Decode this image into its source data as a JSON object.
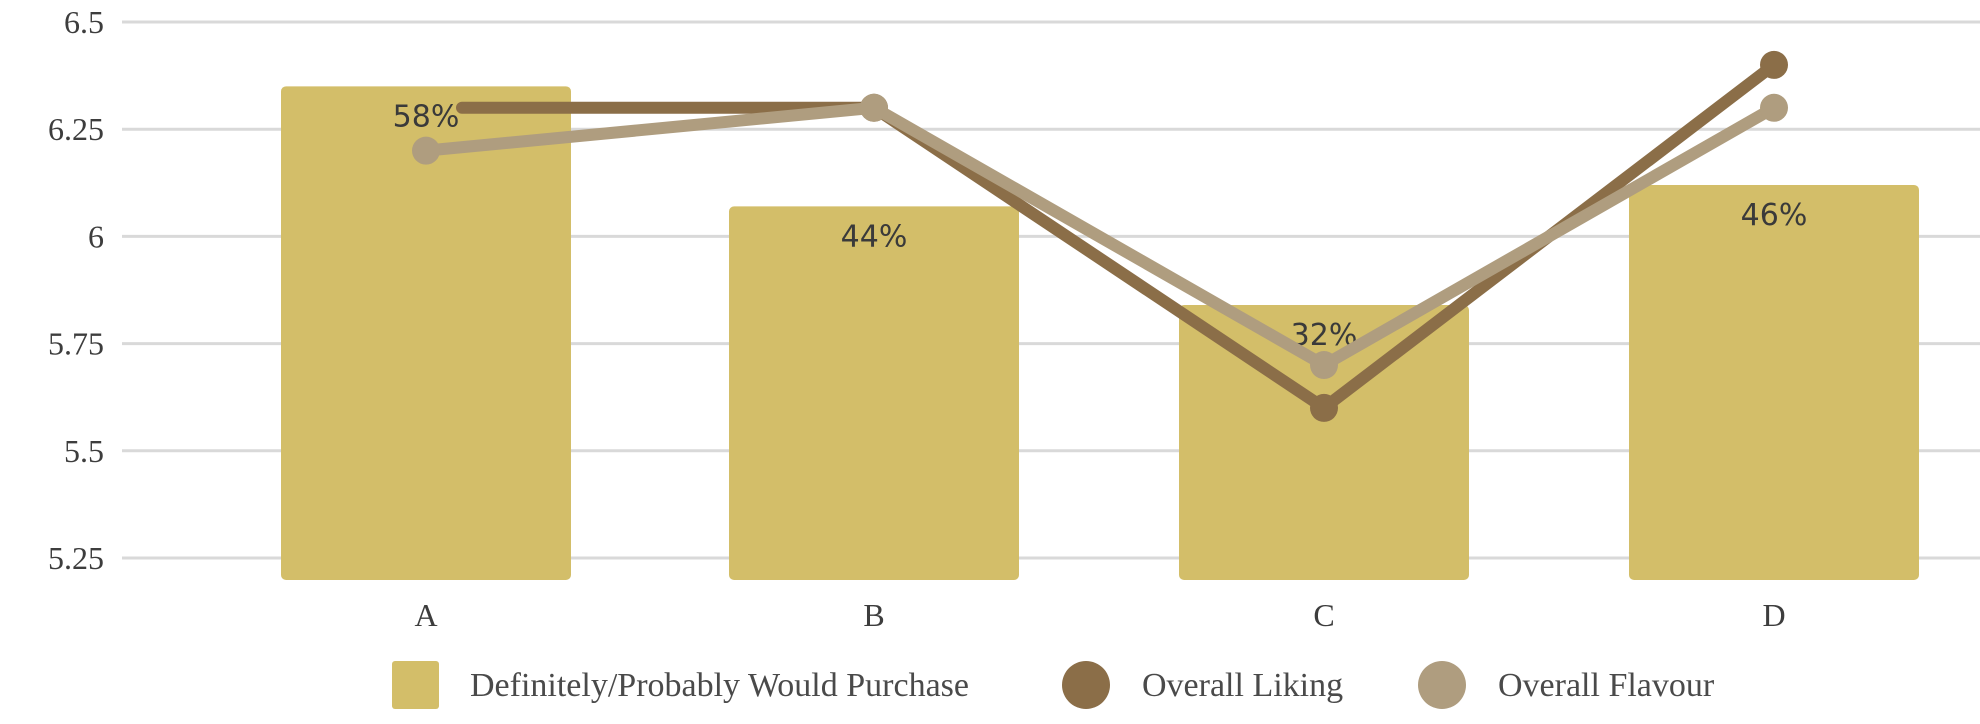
{
  "chart_data": {
    "type": "bar+line",
    "categories": [
      "A",
      "B",
      "C",
      "D"
    ],
    "ylim": [
      5.25,
      6.5
    ],
    "y_ticks": [
      "6.5",
      "6.25",
      "6",
      "5.75",
      "5.5",
      "5.25"
    ],
    "grid": true,
    "legend_position": "bottom",
    "bar_series": {
      "name": "Definitely/Probably Would Purchase",
      "color": "#d3be69",
      "values": [
        6.35,
        6.07,
        5.84,
        6.12
      ],
      "labels": [
        "58%",
        "44%",
        "32%",
        "46%"
      ]
    },
    "line_series": [
      {
        "name": "Overall Liking",
        "color": "#8b6e48",
        "values": [
          6.3,
          6.3,
          5.6,
          6.4
        ]
      },
      {
        "name": "Overall Flavour",
        "color": "#af9d7f",
        "values": [
          6.2,
          6.3,
          5.7,
          6.3
        ]
      }
    ]
  }
}
